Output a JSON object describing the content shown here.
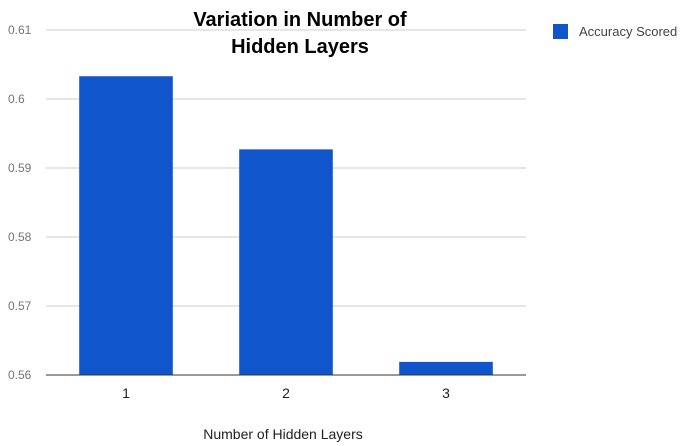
{
  "chart_data": {
    "type": "bar",
    "title_lines": [
      "Variation in Number of",
      "Hidden Layers"
    ],
    "xlabel": "Number of Hidden Layers",
    "ylabel": "",
    "categories": [
      "1",
      "2",
      "3"
    ],
    "series": [
      {
        "name": "Accuracy Scored",
        "values": [
          0.6033,
          0.5927,
          0.5619
        ],
        "color": "#1155cc"
      }
    ],
    "ylim": [
      0.56,
      0.61
    ],
    "yticks": [
      0.56,
      0.57,
      0.58,
      0.59,
      0.6,
      0.61
    ],
    "ytick_labels": [
      "0.56",
      "0.57",
      "0.58",
      "0.59",
      "0.6",
      "0.61"
    ],
    "grid": true,
    "legend_position": "top-right",
    "colors": {
      "bar": "#1155cc",
      "grid": "#cccccc",
      "axis": "#333333"
    }
  }
}
